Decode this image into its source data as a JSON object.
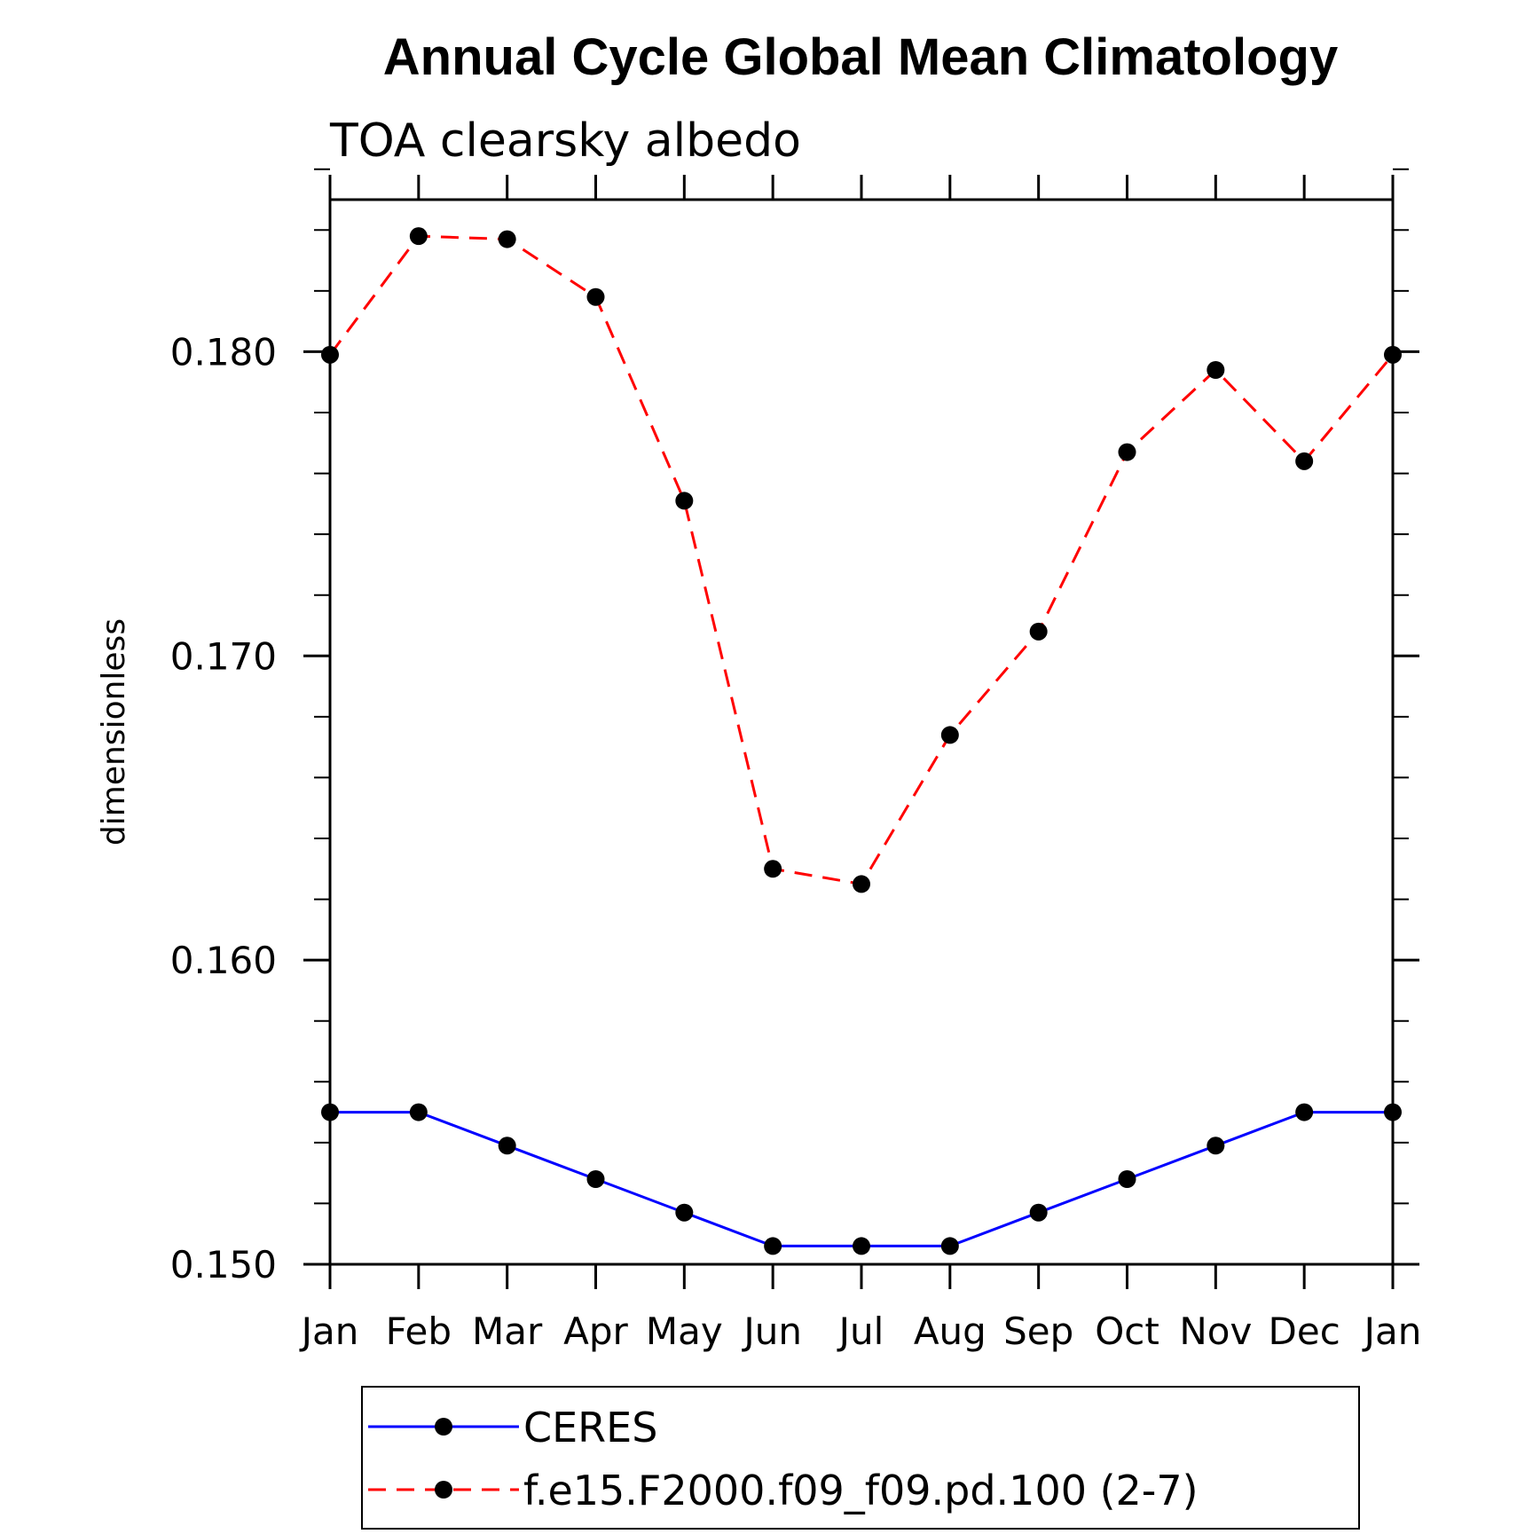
{
  "chart_data": {
    "type": "line",
    "title": "Annual Cycle Global Mean Climatology",
    "subtitle": "TOA clearsky albedo",
    "xlabel": "",
    "ylabel": "dimensionless",
    "categories": [
      "Jan",
      "Feb",
      "Mar",
      "Apr",
      "May",
      "Jun",
      "Jul",
      "Aug",
      "Sep",
      "Oct",
      "Nov",
      "Dec",
      "Jan"
    ],
    "ylim": [
      0.15,
      0.185
    ],
    "yticks": [
      0.15,
      0.16,
      0.17,
      0.18
    ],
    "ytick_labels": [
      "0.150",
      "0.160",
      "0.170",
      "0.180"
    ],
    "series": [
      {
        "name": "CERES",
        "color": "#0000ff",
        "style": "solid",
        "marker": "filled-circle",
        "values": [
          0.155,
          0.155,
          0.1539,
          0.1528,
          0.1517,
          0.1506,
          0.1506,
          0.1506,
          0.1517,
          0.1528,
          0.1539,
          0.155,
          0.155
        ]
      },
      {
        "name": "f.e15.F2000.f09_f09.pd.100 (2-7)",
        "color": "#ff0000",
        "style": "dashed",
        "marker": "filled-circle",
        "values": [
          0.1799,
          0.1838,
          0.1837,
          0.1818,
          0.1751,
          0.163,
          0.1625,
          0.1674,
          0.1708,
          0.1767,
          0.1794,
          0.1764,
          0.1799
        ]
      }
    ],
    "legend_position": "bottom"
  }
}
